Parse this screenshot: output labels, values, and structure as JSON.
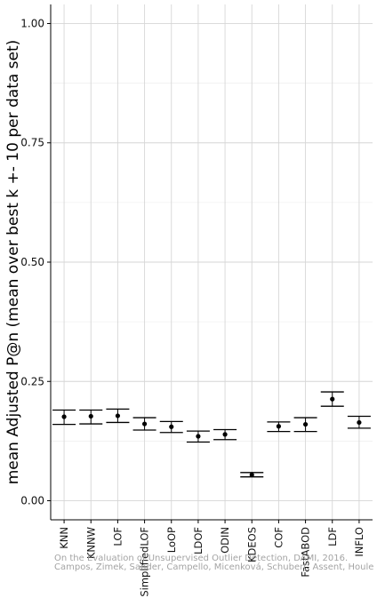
{
  "chart_data": {
    "type": "scatter",
    "title": "",
    "xlabel": "",
    "ylabel": "mean Adjusted P@n (mean over best k +- 10 per data set)",
    "ylim": [
      -0.04,
      1.04
    ],
    "yticks": [
      0.0,
      0.25,
      0.5,
      0.75,
      1.0
    ],
    "ytick_labels": [
      "0.00",
      "0.25",
      "0.50",
      "0.75",
      "1.00"
    ],
    "grid": true,
    "categories": [
      "KNN",
      "KNNW",
      "LOF",
      "SimplifiedLOF",
      "LoOP",
      "LDOF",
      "ODIN",
      "KDEOS",
      "COF",
      "FastABOD",
      "LDF",
      "INFLO"
    ],
    "series": [
      {
        "values": [
          0.176,
          0.177,
          0.178,
          0.161,
          0.155,
          0.135,
          0.139,
          0.054,
          0.156,
          0.16,
          0.213,
          0.164
        ],
        "err_low": [
          0.16,
          0.161,
          0.164,
          0.148,
          0.143,
          0.123,
          0.128,
          0.05,
          0.145,
          0.145,
          0.198,
          0.152
        ],
        "err_high": [
          0.19,
          0.19,
          0.192,
          0.174,
          0.166,
          0.146,
          0.149,
          0.059,
          0.165,
          0.174,
          0.228,
          0.177
        ]
      }
    ],
    "annotations": {
      "watermark_line1": "On the Evaluation of Unsupervised Outlier Detection, DAMI, 2016.",
      "watermark_line2": "Campos, Zimek, Sander, Campello, Micenková, Schubert, Assent, Houle"
    }
  }
}
